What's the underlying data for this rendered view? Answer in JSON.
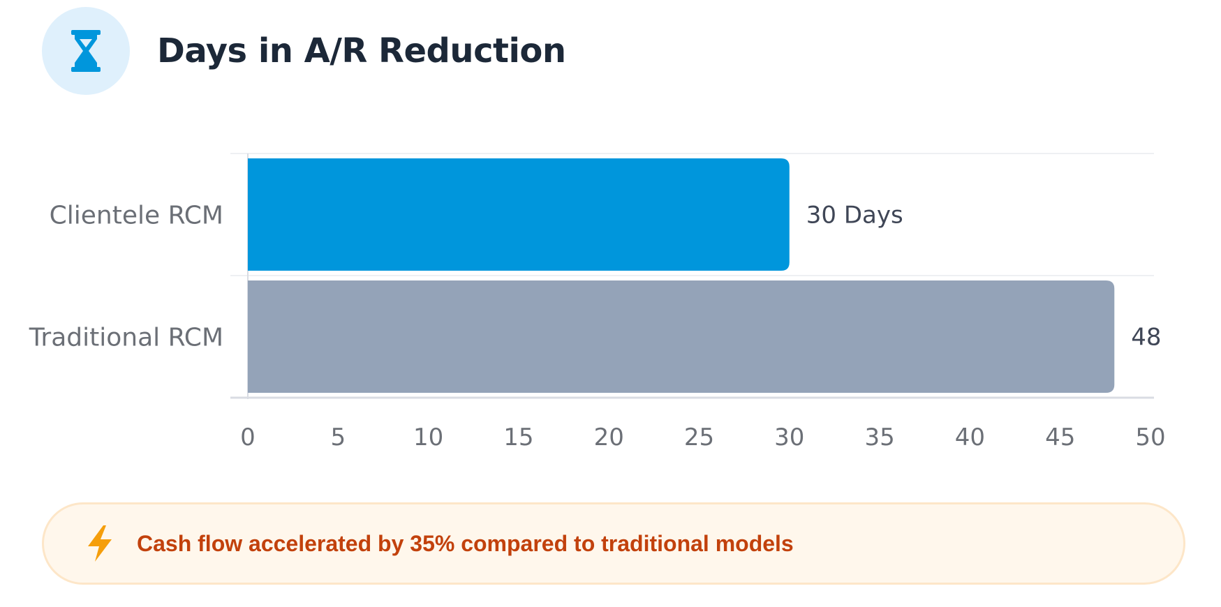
{
  "header": {
    "title": "Days in A/R Reduction",
    "icon": "hourglass-icon"
  },
  "chart_data": {
    "type": "bar",
    "orientation": "horizontal",
    "categories": [
      "Clientele RCM",
      "Traditional RCM"
    ],
    "values": [
      30,
      48
    ],
    "data_labels": [
      "30 Days",
      "48"
    ],
    "colors": [
      "#0096dc",
      "#94a3b8"
    ],
    "xlim": [
      0,
      50
    ],
    "xticks": [
      "0",
      "5",
      "10",
      "15",
      "20",
      "25",
      "30",
      "35",
      "40",
      "45",
      "50"
    ],
    "grid": true
  },
  "callout": {
    "icon": "lightning-icon",
    "text": "Cash flow accelerated by 35% compared to traditional models"
  },
  "colors": {
    "accent": "#0096dc",
    "muted_bar": "#94a3b8",
    "title": "#1c2838",
    "callout_text": "#c2410c",
    "callout_bg": "#fff7ec"
  }
}
